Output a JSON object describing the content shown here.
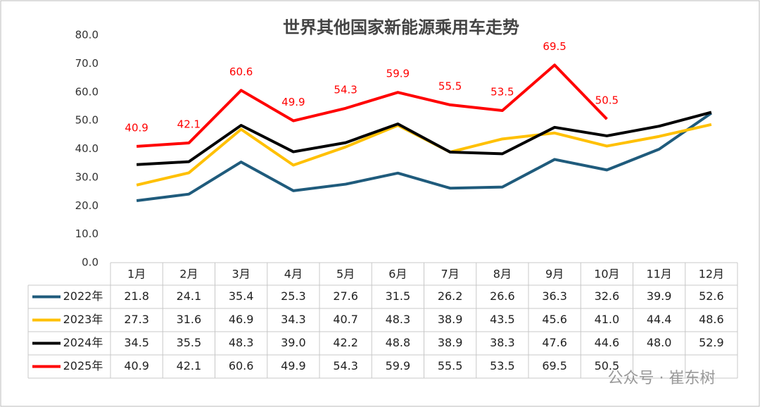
{
  "chart_data": {
    "type": "line",
    "title": "世界其他国家新能源乘用车走势",
    "categories": [
      "1月",
      "2月",
      "3月",
      "4月",
      "5月",
      "6月",
      "7月",
      "8月",
      "9月",
      "10月",
      "11月",
      "12月"
    ],
    "series": [
      {
        "name": "2022年",
        "color": "#1f5b7c",
        "values": [
          21.8,
          24.1,
          35.4,
          25.3,
          27.6,
          31.5,
          26.2,
          26.6,
          36.3,
          32.6,
          39.9,
          52.6
        ],
        "value_labels": [
          "21.8",
          "24.1",
          "35.4",
          "25.3",
          "27.6",
          "31.5",
          "26.2",
          "26.6",
          "36.3",
          "32.6",
          "39.9",
          "52.6"
        ]
      },
      {
        "name": "2023年",
        "color": "#ffc000",
        "values": [
          27.3,
          31.6,
          46.9,
          34.3,
          40.7,
          48.3,
          38.9,
          43.5,
          45.6,
          41,
          44.4,
          48.6
        ],
        "value_labels": [
          "27.3",
          "31.6",
          "46.9",
          "34.3",
          "40.7",
          "48.3",
          "38.9",
          "43.5",
          "45.6",
          "41.0",
          "44.4",
          "48.6"
        ]
      },
      {
        "name": "2024年",
        "color": "#000000",
        "values": [
          34.5,
          35.5,
          48.3,
          39,
          42.2,
          48.8,
          38.9,
          38.3,
          47.6,
          44.6,
          48,
          52.9
        ],
        "value_labels": [
          "34.5",
          "35.5",
          "48.3",
          "39.0",
          "42.2",
          "48.8",
          "38.9",
          "38.3",
          "47.6",
          "44.6",
          "48.0",
          "52.9"
        ]
      },
      {
        "name": "2025年",
        "color": "#ff0000",
        "values": [
          40.9,
          42.1,
          60.6,
          49.9,
          54.3,
          59.9,
          55.5,
          53.5,
          69.5,
          50.5,
          null,
          null
        ],
        "value_labels": [
          "40.9",
          "42.1",
          "60.6",
          "49.9",
          "54.3",
          "59.9",
          "55.5",
          "53.5",
          "69.5",
          "50.5",
          null,
          null
        ],
        "data_labels": true
      }
    ],
    "ylim": [
      0,
      80
    ],
    "yticks": [
      {
        "value": 0,
        "label": "0.0"
      },
      {
        "value": 10,
        "label": "10.0"
      },
      {
        "value": 20,
        "label": "20.0"
      },
      {
        "value": 30,
        "label": "30.0"
      },
      {
        "value": 40,
        "label": "40.0"
      },
      {
        "value": 50,
        "label": "50.0"
      },
      {
        "value": 60,
        "label": "60.0"
      },
      {
        "value": 70,
        "label": "70.0"
      },
      {
        "value": 80,
        "label": "80.0"
      }
    ],
    "grid": false,
    "watermark": "公众号 · 崔东树"
  }
}
